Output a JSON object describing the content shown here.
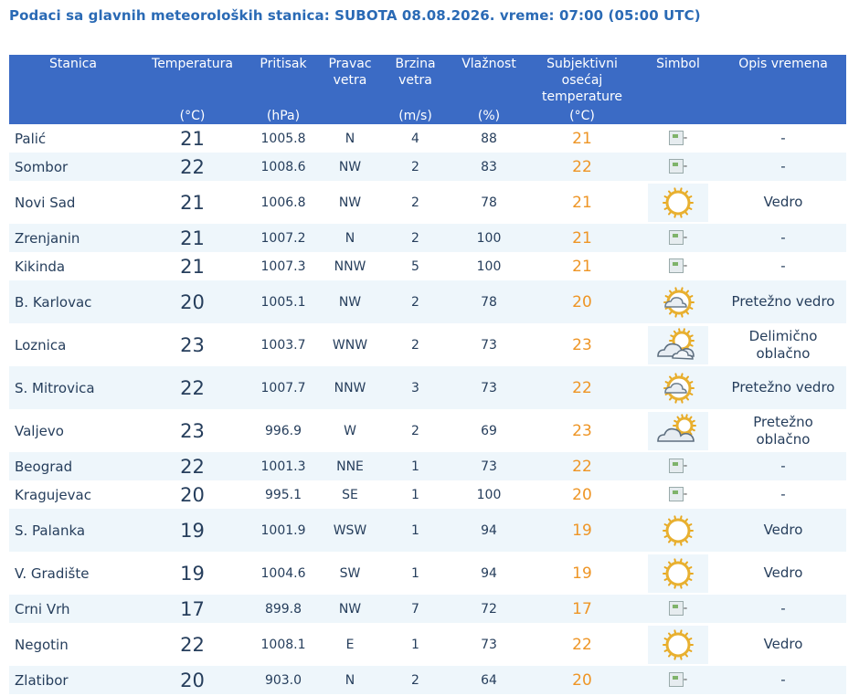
{
  "title": "Podaci sa glavnih meteoroloških stanica:  SUBOTA 08.08.2026.  vreme: 07:00 (05:00 UTC)",
  "headers": [
    {
      "label": "Stanica",
      "unit": ""
    },
    {
      "label": "Temperatura",
      "unit": "(°C)"
    },
    {
      "label": "Pritisak",
      "unit": "(hPa)"
    },
    {
      "label": "Pravac vetra",
      "unit": ""
    },
    {
      "label": "Brzina vetra",
      "unit": "(m/s)"
    },
    {
      "label": "Vlažnost",
      "unit": "(%)"
    },
    {
      "label": "Subjektivni osećaj temperature",
      "unit": "(°C)"
    },
    {
      "label": "Simbol",
      "unit": ""
    },
    {
      "label": "Opis vremena",
      "unit": ""
    }
  ],
  "rows": [
    {
      "station": "Palić",
      "temp": "21",
      "pressure": "1005.8",
      "dir": "N",
      "speed": "4",
      "hum": "88",
      "feel": "21",
      "symbol": "broken-image-icon",
      "sym_alt": "-",
      "desc": "-"
    },
    {
      "station": "Sombor",
      "temp": "22",
      "pressure": "1008.6",
      "dir": "NW",
      "speed": "2",
      "hum": "83",
      "feel": "22",
      "symbol": "broken-image-icon",
      "sym_alt": "-",
      "desc": "-"
    },
    {
      "station": "Novi Sad",
      "temp": "21",
      "pressure": "1006.8",
      "dir": "NW",
      "speed": "2",
      "hum": "78",
      "feel": "21",
      "symbol": "sun-icon",
      "sym_alt": "",
      "desc": "Vedro"
    },
    {
      "station": "Zrenjanin",
      "temp": "21",
      "pressure": "1007.2",
      "dir": "N",
      "speed": "2",
      "hum": "100",
      "feel": "21",
      "symbol": "broken-image-icon",
      "sym_alt": "-",
      "desc": "-"
    },
    {
      "station": "Kikinda",
      "temp": "21",
      "pressure": "1007.3",
      "dir": "NNW",
      "speed": "5",
      "hum": "100",
      "feel": "21",
      "symbol": "broken-image-icon",
      "sym_alt": "-",
      "desc": "-"
    },
    {
      "station": "B. Karlovac",
      "temp": "20",
      "pressure": "1005.1",
      "dir": "NW",
      "speed": "2",
      "hum": "78",
      "feel": "20",
      "symbol": "sun-small-cloud-icon",
      "sym_alt": "",
      "desc": "Pretežno vedro"
    },
    {
      "station": "Loznica",
      "temp": "23",
      "pressure": "1003.7",
      "dir": "WNW",
      "speed": "2",
      "hum": "73",
      "feel": "23",
      "symbol": "sun-behind-clouds-icon",
      "sym_alt": "",
      "desc": "Delimično oblačno"
    },
    {
      "station": "S. Mitrovica",
      "temp": "22",
      "pressure": "1007.7",
      "dir": "NNW",
      "speed": "3",
      "hum": "73",
      "feel": "22",
      "symbol": "sun-small-cloud-icon",
      "sym_alt": "",
      "desc": "Pretežno vedro"
    },
    {
      "station": "Valjevo",
      "temp": "23",
      "pressure": "996.9",
      "dir": "W",
      "speed": "2",
      "hum": "69",
      "feel": "23",
      "symbol": "clouds-sun-icon",
      "sym_alt": "",
      "desc": "Pretežno oblačno"
    },
    {
      "station": "Beograd",
      "temp": "22",
      "pressure": "1001.3",
      "dir": "NNE",
      "speed": "1",
      "hum": "73",
      "feel": "22",
      "symbol": "broken-image-icon",
      "sym_alt": "-",
      "desc": "-"
    },
    {
      "station": "Kragujevac",
      "temp": "20",
      "pressure": "995.1",
      "dir": "SE",
      "speed": "1",
      "hum": "100",
      "feel": "20",
      "symbol": "broken-image-icon",
      "sym_alt": "-",
      "desc": "-"
    },
    {
      "station": "S. Palanka",
      "temp": "19",
      "pressure": "1001.9",
      "dir": "WSW",
      "speed": "1",
      "hum": "94",
      "feel": "19",
      "symbol": "sun-icon",
      "sym_alt": "",
      "desc": "Vedro"
    },
    {
      "station": "V. Gradište",
      "temp": "19",
      "pressure": "1004.6",
      "dir": "SW",
      "speed": "1",
      "hum": "94",
      "feel": "19",
      "symbol": "sun-icon",
      "sym_alt": "",
      "desc": "Vedro"
    },
    {
      "station": "Crni Vrh",
      "temp": "17",
      "pressure": "899.8",
      "dir": "NW",
      "speed": "7",
      "hum": "72",
      "feel": "17",
      "symbol": "broken-image-icon",
      "sym_alt": "-",
      "desc": "-"
    },
    {
      "station": "Negotin",
      "temp": "22",
      "pressure": "1008.1",
      "dir": "E",
      "speed": "1",
      "hum": "73",
      "feel": "22",
      "symbol": "sun-icon",
      "sym_alt": "",
      "desc": "Vedro"
    },
    {
      "station": "Zlatibor",
      "temp": "20",
      "pressure": "903.0",
      "dir": "N",
      "speed": "2",
      "hum": "64",
      "feel": "20",
      "symbol": "broken-image-icon",
      "sym_alt": "-",
      "desc": "-"
    }
  ],
  "colors": {
    "title": "#2a6ab5",
    "header_bg": "#3b6bc5",
    "row_alt": "#eef6fb",
    "text": "#263e5c",
    "feel": "#ee9525",
    "sun": "#f2c233"
  }
}
